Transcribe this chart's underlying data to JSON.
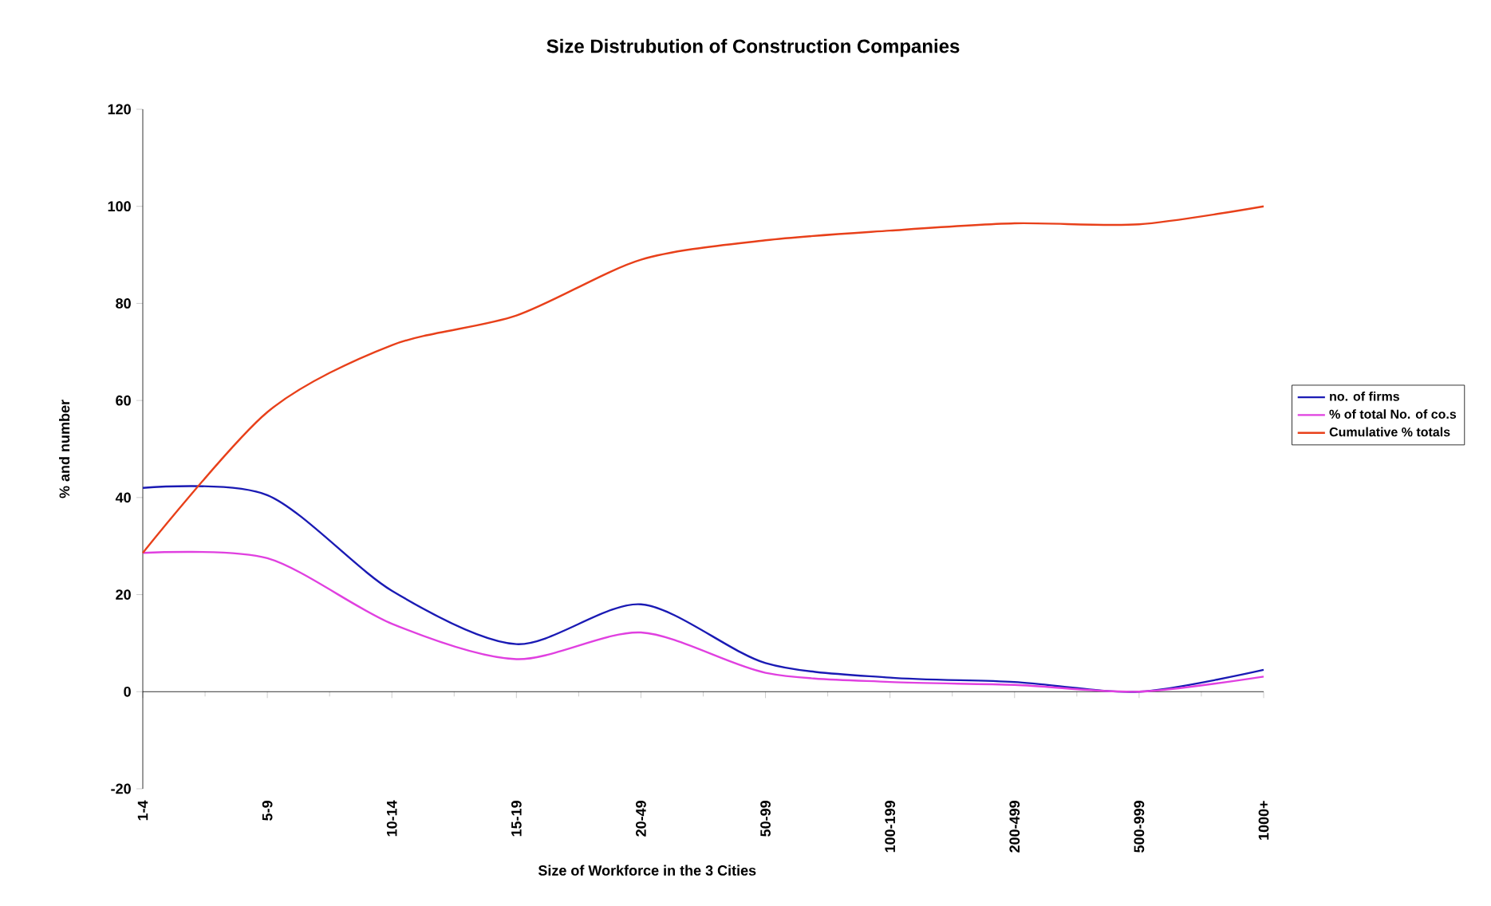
{
  "chart_data": {
    "type": "line",
    "title": "Size Distrubution of  Construction Companies",
    "xlabel": "Size of Workforce in the 3 Cities",
    "ylabel": "% and number",
    "categories": [
      "1-4",
      "5-9",
      "10-14",
      "15-19",
      "20-49",
      "50-99",
      "100-199",
      "200-499",
      "500-999",
      "1000+"
    ],
    "series": [
      {
        "name": "no. of firms",
        "color": "#1a1ab4",
        "values": [
          42,
          40.5,
          20.8,
          9.8,
          18,
          5.9,
          2.9,
          2,
          0,
          4.5
        ]
      },
      {
        "name": "% of total No. of co.s",
        "color": "#e040e0",
        "values": [
          28.6,
          27.5,
          14,
          6.7,
          12.2,
          3.9,
          2,
          1.4,
          0,
          3.1
        ]
      },
      {
        "name": "Cumulative % totals",
        "color": "#e8401a",
        "values": [
          28.6,
          57.6,
          71.4,
          77.5,
          89,
          93,
          95,
          96.5,
          96.3,
          100
        ]
      }
    ],
    "ylim": [
      -20,
      120
    ],
    "yticks": [
      -20,
      0,
      20,
      40,
      60,
      80,
      100,
      120
    ],
    "legend": "right",
    "marker": "none",
    "line_style": "solid"
  }
}
